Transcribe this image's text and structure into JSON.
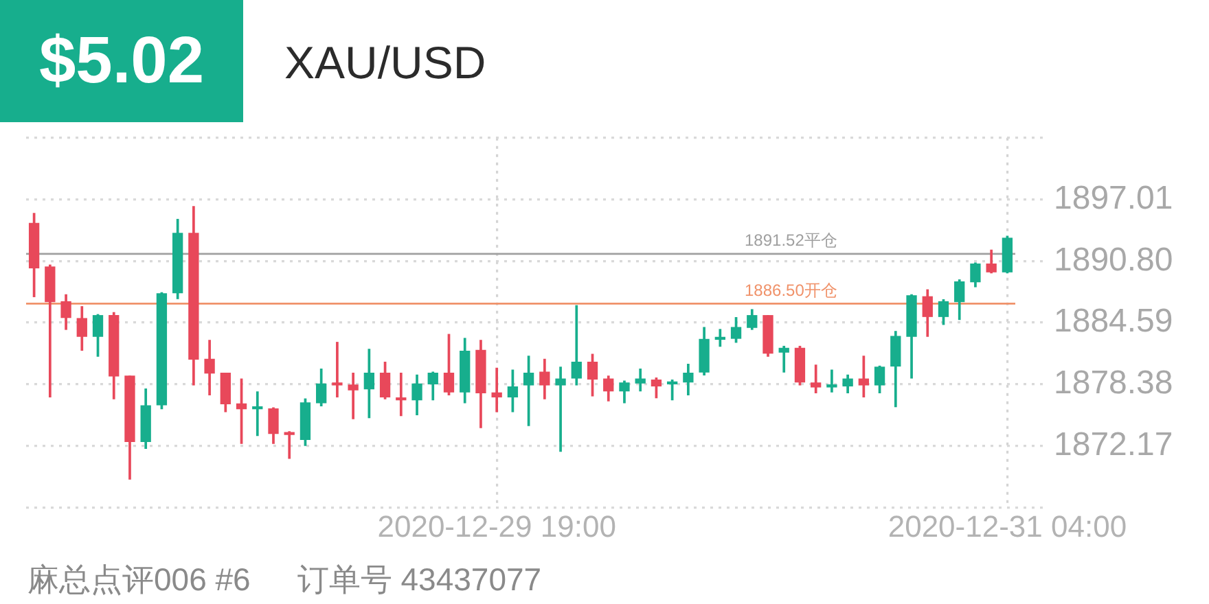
{
  "chart_data": {
    "type": "candlestick",
    "title": "XAU/USD",
    "subtitle": "$5.02",
    "annotations": [
      "麻总点评006 #6",
      "订单号 43437077"
    ],
    "categories": [
      null,
      null,
      null,
      null,
      null,
      null,
      null,
      null,
      null,
      null,
      null,
      null,
      null,
      null,
      null,
      null,
      null,
      null,
      null,
      null,
      null,
      null,
      null,
      null,
      null,
      null,
      null,
      null,
      null,
      "2020-12-29 19:00",
      null,
      null,
      null,
      null,
      null,
      null,
      null,
      null,
      null,
      null,
      null,
      null,
      null,
      null,
      null,
      null,
      null,
      null,
      null,
      null,
      null,
      null,
      null,
      null,
      null,
      null,
      null,
      null,
      null,
      null,
      null,
      "2020-12-31 04:00"
    ],
    "ohlc": [
      [
        1894.6,
        1895.6,
        1887.2,
        1890.1
      ],
      [
        1890.2,
        1890.4,
        1877.1,
        1886.7
      ],
      [
        1886.7,
        1887.4,
        1883.9,
        1885.1
      ],
      [
        1885.0,
        1886.2,
        1881.8,
        1883.2
      ],
      [
        1883.2,
        1885.4,
        1881.2,
        1885.3
      ],
      [
        1885.3,
        1885.6,
        1876.9,
        1879.2
      ],
      [
        1879.2,
        1879.2,
        1868.8,
        1872.6
      ],
      [
        1872.6,
        1877.9,
        1871.9,
        1876.2
      ],
      [
        1876.3,
        1887.6,
        1875.9,
        1887.5
      ],
      [
        1887.6,
        1895.0,
        1887.0,
        1893.6
      ],
      [
        1893.6,
        1896.3,
        1878.3,
        1880.9
      ],
      [
        1880.9,
        1882.8,
        1877.3,
        1879.5
      ],
      [
        1879.5,
        1879.5,
        1875.6,
        1876.4
      ],
      [
        1876.4,
        1878.9,
        1872.4,
        1875.9
      ],
      [
        1875.9,
        1877.6,
        1873.2,
        1876.0
      ],
      [
        1875.9,
        1876.0,
        1872.4,
        1873.4
      ],
      [
        1873.4,
        1873.6,
        1870.9,
        1873.3
      ],
      [
        1872.8,
        1876.9,
        1872.2,
        1876.5
      ],
      [
        1876.5,
        1879.9,
        1876.2,
        1878.4
      ],
      [
        1878.5,
        1882.6,
        1877.1,
        1878.3
      ],
      [
        1878.3,
        1879.5,
        1874.9,
        1877.8
      ],
      [
        1877.9,
        1881.9,
        1875.0,
        1879.5
      ],
      [
        1879.5,
        1880.6,
        1876.9,
        1877.1
      ],
      [
        1877.0,
        1879.5,
        1875.2,
        1876.8
      ],
      [
        1876.8,
        1879.3,
        1875.3,
        1878.4
      ],
      [
        1878.4,
        1879.6,
        1876.8,
        1879.5
      ],
      [
        1879.5,
        1883.4,
        1877.3,
        1877.6
      ],
      [
        1877.6,
        1883.0,
        1876.5,
        1881.7
      ],
      [
        1881.8,
        1882.8,
        1874.0,
        1877.5
      ],
      [
        1877.5,
        1880.0,
        1875.6,
        1877.1
      ],
      [
        1877.1,
        1879.8,
        1875.6,
        1878.1
      ],
      [
        1878.3,
        1881.2,
        1874.2,
        1879.5
      ],
      [
        1879.6,
        1880.9,
        1876.9,
        1878.3
      ],
      [
        1878.3,
        1880.1,
        1871.6,
        1878.9
      ],
      [
        1879.0,
        1886.3,
        1878.3,
        1880.6
      ],
      [
        1880.6,
        1881.4,
        1877.2,
        1878.9
      ],
      [
        1878.9,
        1879.2,
        1876.7,
        1877.7
      ],
      [
        1877.7,
        1878.7,
        1876.5,
        1878.5
      ],
      [
        1878.5,
        1879.9,
        1877.7,
        1878.9
      ],
      [
        1878.8,
        1879.0,
        1877.0,
        1878.2
      ],
      [
        1878.4,
        1878.8,
        1876.8,
        1878.6
      ],
      [
        1878.6,
        1880.4,
        1877.3,
        1879.5
      ],
      [
        1879.6,
        1884.1,
        1879.3,
        1882.9
      ],
      [
        1882.9,
        1883.9,
        1882.2,
        1883.1
      ],
      [
        1883.0,
        1885.1,
        1882.6,
        1884.1
      ],
      [
        1884.1,
        1885.9,
        1883.9,
        1885.3
      ],
      [
        1885.3,
        1885.3,
        1881.2,
        1881.5
      ],
      [
        1881.6,
        1882.2,
        1879.6,
        1882.0
      ],
      [
        1882.0,
        1882.2,
        1878.3,
        1878.6
      ],
      [
        1878.5,
        1880.3,
        1877.5,
        1878.1
      ],
      [
        1878.1,
        1879.8,
        1877.6,
        1878.2
      ],
      [
        1878.2,
        1879.3,
        1877.5,
        1878.9
      ],
      [
        1878.9,
        1881.2,
        1877.1,
        1878.3
      ],
      [
        1878.3,
        1880.2,
        1877.5,
        1880.1
      ],
      [
        1880.2,
        1883.7,
        1876.1,
        1883.2
      ],
      [
        1883.2,
        1887.4,
        1879.0,
        1887.3
      ],
      [
        1887.2,
        1887.9,
        1883.2,
        1885.2
      ],
      [
        1885.2,
        1886.9,
        1884.4,
        1886.7
      ],
      [
        1886.7,
        1888.9,
        1884.9,
        1888.7
      ],
      [
        1888.7,
        1890.6,
        1888.2,
        1890.5
      ],
      [
        1890.5,
        1891.9,
        1889.6,
        1889.7
      ],
      [
        1889.7,
        1893.3,
        1889.6,
        1893.1
      ]
    ],
    "colors": [
      "#e8485a",
      "#e8485a",
      "#e8485a",
      "#e8485a",
      "#17ae8d",
      "#e8485a",
      "#e8485a",
      "#17ae8d",
      "#17ae8d",
      "#17ae8d",
      "#e8485a",
      "#e8485a",
      "#e8485a",
      "#e8485a",
      "#17ae8d",
      "#e8485a",
      "#e8485a",
      "#17ae8d",
      "#17ae8d",
      "#e8485a",
      "#e8485a",
      "#17ae8d",
      "#e8485a",
      "#e8485a",
      "#17ae8d",
      "#17ae8d",
      "#e8485a",
      "#17ae8d",
      "#e8485a",
      "#e8485a",
      "#17ae8d",
      "#17ae8d",
      "#e8485a",
      "#17ae8d",
      "#17ae8d",
      "#e8485a",
      "#e8485a",
      "#17ae8d",
      "#17ae8d",
      "#e8485a",
      "#17ae8d",
      "#17ae8d",
      "#17ae8d",
      "#17ae8d",
      "#17ae8d",
      "#17ae8d",
      "#e8485a",
      "#17ae8d",
      "#e8485a",
      "#e8485a",
      "#17ae8d",
      "#17ae8d",
      "#e8485a",
      "#17ae8d",
      "#17ae8d",
      "#17ae8d",
      "#e8485a",
      "#17ae8d",
      "#17ae8d",
      "#17ae8d",
      "#e8485a",
      "#17ae8d"
    ],
    "ylim": [
      1865.96,
      1903.22
    ],
    "yticks": [
      {
        "value": 1865.96,
        "label": null
      },
      1872.17,
      1878.38,
      1884.59,
      {
        "value": 1890.8,
        "label": "1890.80"
      },
      1897.01,
      {
        "value": 1903.22,
        "label": null
      }
    ],
    "grid": true,
    "ref_lines": [
      {
        "axis": "y",
        "value": 1891.52,
        "label": "1891.52平仓",
        "color": "#a0a0a0"
      },
      {
        "axis": "y",
        "value": 1886.5,
        "label": "1886.50开仓",
        "color": "#f0926a"
      }
    ]
  }
}
